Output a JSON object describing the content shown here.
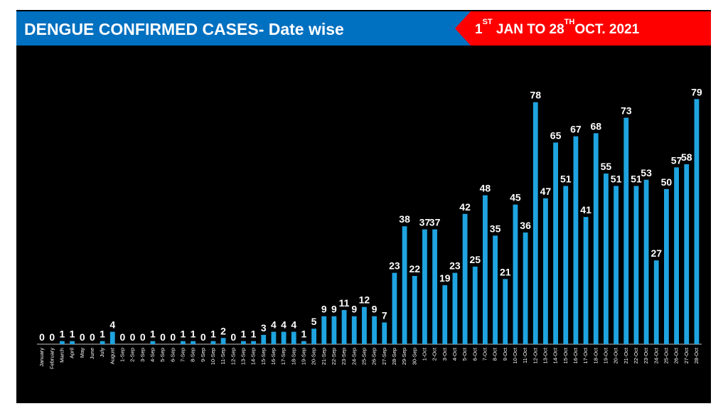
{
  "header": {
    "title": "DENGUE CONFIRMED CASES- Date wise",
    "range_part1": "1",
    "range_sup1": "ST",
    "range_part2": " JAN TO 28",
    "range_sup2": "TH",
    "range_part3": "OCT. 2021"
  },
  "colors": {
    "background": "#000000",
    "bar": "#1fa4e0",
    "title_bar": "#0070c0",
    "date_banner": "#ff0000",
    "text": "#ffffff"
  },
  "chart_data": {
    "type": "bar",
    "title": "",
    "xlabel": "",
    "ylabel": "",
    "ylim": [
      0,
      80
    ],
    "grid": false,
    "categories": [
      "January",
      "February",
      "March",
      "April",
      "May",
      "June",
      "July",
      "August",
      "1-Sep",
      "2-Sep",
      "3-Sep",
      "4-Sep",
      "5-Sep",
      "6-Sep",
      "7-Sep",
      "8-Sep",
      "9-Sep",
      "10-Sep",
      "11-Sep",
      "12-Sep",
      "13-Sep",
      "14-Sep",
      "15-Sep",
      "16-Sep",
      "17-Sep",
      "18-Sep",
      "19-Sep",
      "20-Sep",
      "21-Sep",
      "22-Sep",
      "23-Sep",
      "24-Sep",
      "25-Sep",
      "26-Sep",
      "27-Sep",
      "28-Sep",
      "29-Sep",
      "30-Sep",
      "1-Oct",
      "2-Oct",
      "3-Oct",
      "4-Oct",
      "5-Oct",
      "6-Oct",
      "7-Oct",
      "8-Oct",
      "9-Oct",
      "10-Oct",
      "11-Oct",
      "12-Oct",
      "13-Oct",
      "14-Oct",
      "15-Oct",
      "16-Oct",
      "17-Oct",
      "18-Oct",
      "19-Oct",
      "20-Oct",
      "21-Oct",
      "22-Oct",
      "23-Oct",
      "24-Oct",
      "25-Oct",
      "26-Oct",
      "27-Oct",
      "28-Oct"
    ],
    "values": [
      0,
      0,
      1,
      1,
      0,
      0,
      1,
      4,
      0,
      0,
      0,
      1,
      0,
      0,
      1,
      1,
      0,
      1,
      2,
      0,
      1,
      1,
      3,
      4,
      4,
      4,
      1,
      5,
      9,
      9,
      11,
      9,
      12,
      9,
      7,
      23,
      38,
      22,
      37,
      37,
      19,
      23,
      42,
      25,
      48,
      35,
      21,
      45,
      36,
      78,
      47,
      65,
      51,
      67,
      41,
      68,
      55,
      51,
      73,
      51,
      53,
      27,
      50,
      57,
      58,
      79
    ]
  }
}
